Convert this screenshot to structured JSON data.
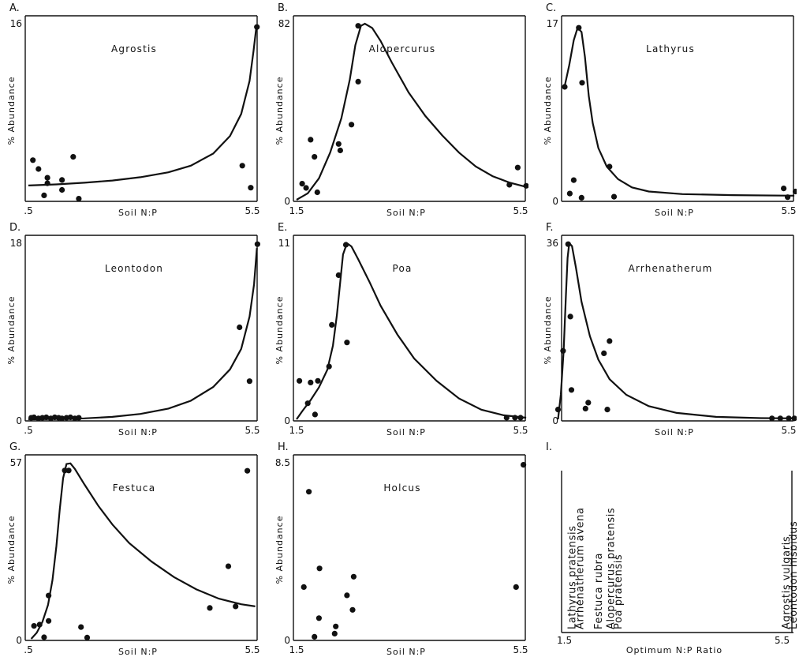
{
  "chart_data": [
    {
      "id": "A",
      "type": "scatter",
      "panel_label": "A.",
      "title": "Agrostis",
      "xlabel": "Soil  N:P",
      "ylabel": "% Abundance",
      "xlim": [
        1.5,
        5.5
      ],
      "ylim": [
        0,
        16
      ],
      "x_tick_labels": [
        ".5",
        "5.5"
      ],
      "y_tick_labels": [
        "16",
        ""
      ],
      "points": [
        [
          1.58,
          3.6
        ],
        [
          1.68,
          2.8
        ],
        [
          1.78,
          0.4
        ],
        [
          1.84,
          2.0
        ],
        [
          1.84,
          1.5
        ],
        [
          2.1,
          1.8
        ],
        [
          2.1,
          0.9
        ],
        [
          2.3,
          3.9
        ],
        [
          2.4,
          0.1
        ],
        [
          5.32,
          3.1
        ],
        [
          5.47,
          1.1
        ],
        [
          5.58,
          15.7
        ]
      ],
      "curve": [
        [
          1.5,
          1.3
        ],
        [
          2.0,
          1.4
        ],
        [
          2.5,
          1.55
        ],
        [
          3.0,
          1.75
        ],
        [
          3.5,
          2.05
        ],
        [
          4.0,
          2.5
        ],
        [
          4.4,
          3.1
        ],
        [
          4.8,
          4.2
        ],
        [
          5.1,
          5.8
        ],
        [
          5.3,
          7.8
        ],
        [
          5.45,
          10.8
        ],
        [
          5.52,
          13.5
        ],
        [
          5.57,
          15.7
        ]
      ]
    },
    {
      "id": "B",
      "type": "scatter",
      "panel_label": "B.",
      "title": "Alopercurus",
      "xlabel": "Soil  N:P",
      "ylabel": "% Abundance",
      "xlim": [
        1.5,
        5.5
      ],
      "ylim": [
        0,
        82
      ],
      "x_tick_labels": [
        "1.5",
        "5.5"
      ],
      "y_tick_labels": [
        "82",
        "0"
      ],
      "points": [
        [
          1.6,
          7.5
        ],
        [
          1.67,
          5.5
        ],
        [
          1.75,
          28
        ],
        [
          1.82,
          20
        ],
        [
          1.87,
          3.5
        ],
        [
          2.25,
          26
        ],
        [
          2.28,
          23
        ],
        [
          2.48,
          35
        ],
        [
          2.6,
          55
        ],
        [
          2.6,
          81
        ],
        [
          5.3,
          7
        ],
        [
          5.45,
          15
        ],
        [
          5.6,
          6.5
        ]
      ],
      "curve": [
        [
          1.5,
          0
        ],
        [
          1.7,
          3
        ],
        [
          1.9,
          10
        ],
        [
          2.1,
          22
        ],
        [
          2.3,
          38
        ],
        [
          2.45,
          56
        ],
        [
          2.55,
          72
        ],
        [
          2.65,
          81
        ],
        [
          2.72,
          82
        ],
        [
          2.85,
          80
        ],
        [
          3.0,
          74
        ],
        [
          3.2,
          64
        ],
        [
          3.5,
          50
        ],
        [
          3.8,
          39
        ],
        [
          4.1,
          30
        ],
        [
          4.4,
          22
        ],
        [
          4.7,
          15.5
        ],
        [
          5.0,
          11
        ],
        [
          5.3,
          8
        ],
        [
          5.6,
          6
        ]
      ]
    },
    {
      "id": "C",
      "type": "scatter",
      "panel_label": "C.",
      "title": "Lathyrus",
      "xlabel": "Soil  N:P",
      "ylabel": "% Abundance",
      "xlim": [
        1.5,
        5.5
      ],
      "ylim": [
        0,
        17
      ],
      "x_tick_labels": [
        "",
        "5.5"
      ],
      "y_tick_labels": [
        "17",
        "0"
      ],
      "points": [
        [
          1.5,
          10.9
        ],
        [
          1.59,
          0.6
        ],
        [
          1.66,
          1.9
        ],
        [
          1.75,
          16.6
        ],
        [
          1.81,
          11.3
        ],
        [
          1.8,
          0.2
        ],
        [
          2.3,
          3.2
        ],
        [
          2.38,
          0.3
        ],
        [
          5.41,
          1.1
        ],
        [
          5.48,
          0.25
        ],
        [
          5.62,
          0.8
        ]
      ],
      "curve": [
        [
          1.5,
          11
        ],
        [
          1.58,
          13
        ],
        [
          1.66,
          15.4
        ],
        [
          1.73,
          16.6
        ],
        [
          1.8,
          16.2
        ],
        [
          1.86,
          13.8
        ],
        [
          1.93,
          10
        ],
        [
          2.0,
          7.4
        ],
        [
          2.1,
          5
        ],
        [
          2.25,
          3.2
        ],
        [
          2.45,
          2
        ],
        [
          2.7,
          1.2
        ],
        [
          3.0,
          0.8
        ],
        [
          3.6,
          0.55
        ],
        [
          4.5,
          0.45
        ],
        [
          5.6,
          0.4
        ]
      ]
    },
    {
      "id": "D",
      "type": "scatter",
      "panel_label": "D.",
      "title": "Leontodon",
      "xlabel": "Soil  N:P",
      "ylabel": "% Abundance",
      "xlim": [
        1.5,
        5.5
      ],
      "ylim": [
        0,
        18
      ],
      "x_tick_labels": [
        ".5",
        "5.5"
      ],
      "y_tick_labels": [
        "18",
        "0"
      ],
      "points": [
        [
          1.55,
          0.15
        ],
        [
          1.6,
          0.2
        ],
        [
          1.68,
          0.1
        ],
        [
          1.75,
          0.15
        ],
        [
          1.82,
          0.2
        ],
        [
          1.9,
          0.1
        ],
        [
          1.97,
          0.2
        ],
        [
          2.04,
          0.15
        ],
        [
          2.1,
          0.1
        ],
        [
          2.18,
          0.15
        ],
        [
          2.25,
          0.2
        ],
        [
          2.33,
          0.1
        ],
        [
          2.4,
          0.15
        ],
        [
          5.27,
          9.4
        ],
        [
          5.45,
          3.9
        ],
        [
          5.59,
          17.9
        ]
      ],
      "curve": [
        [
          1.5,
          0
        ],
        [
          2.5,
          0.1
        ],
        [
          3.0,
          0.25
        ],
        [
          3.5,
          0.55
        ],
        [
          4.0,
          1.1
        ],
        [
          4.4,
          1.9
        ],
        [
          4.8,
          3.3
        ],
        [
          5.1,
          5.1
        ],
        [
          5.3,
          7.2
        ],
        [
          5.45,
          10.5
        ],
        [
          5.53,
          13.8
        ],
        [
          5.58,
          17.5
        ]
      ]
    },
    {
      "id": "E",
      "type": "scatter",
      "panel_label": "E.",
      "title": "Poa",
      "xlabel": "Soil  N:P",
      "ylabel": "% Abundance",
      "xlim": [
        1.5,
        5.5
      ],
      "ylim": [
        0,
        11
      ],
      "x_tick_labels": [
        "1.5",
        "5.5"
      ],
      "y_tick_labels": [
        "11",
        "0"
      ],
      "points": [
        [
          1.55,
          2.4
        ],
        [
          1.7,
          1.0
        ],
        [
          1.75,
          2.3
        ],
        [
          1.83,
          0.3
        ],
        [
          1.88,
          2.4
        ],
        [
          2.08,
          3.3
        ],
        [
          2.13,
          5.9
        ],
        [
          2.25,
          9.0
        ],
        [
          2.38,
          10.9
        ],
        [
          2.4,
          4.8
        ],
        [
          5.25,
          0.1
        ],
        [
          5.4,
          0.1
        ],
        [
          5.5,
          0.1
        ]
      ],
      "curve": [
        [
          1.5,
          0
        ],
        [
          1.6,
          0.5
        ],
        [
          1.75,
          1.2
        ],
        [
          1.9,
          2.0
        ],
        [
          2.05,
          3.1
        ],
        [
          2.15,
          4.6
        ],
        [
          2.22,
          6.5
        ],
        [
          2.28,
          8.6
        ],
        [
          2.33,
          10.3
        ],
        [
          2.4,
          11
        ],
        [
          2.48,
          10.8
        ],
        [
          2.6,
          10
        ],
        [
          2.8,
          8.6
        ],
        [
          3.0,
          7.1
        ],
        [
          3.3,
          5.3
        ],
        [
          3.6,
          3.8
        ],
        [
          4.0,
          2.4
        ],
        [
          4.4,
          1.3
        ],
        [
          4.8,
          0.6
        ],
        [
          5.2,
          0.25
        ],
        [
          5.6,
          0.1
        ]
      ]
    },
    {
      "id": "F",
      "type": "scatter",
      "panel_label": "F.",
      "title": "Arrhenatherum",
      "xlabel": "Soil  N:P",
      "ylabel": "% Abundance",
      "xlim": [
        1.5,
        5.5
      ],
      "ylim": [
        0,
        36
      ],
      "x_tick_labels": [
        "",
        "5.5"
      ],
      "y_tick_labels": [
        "36",
        "0"
      ],
      "points": [
        [
          1.38,
          2
        ],
        [
          1.47,
          14
        ],
        [
          1.56,
          35.8
        ],
        [
          1.6,
          21
        ],
        [
          1.62,
          6
        ],
        [
          1.87,
          2.2
        ],
        [
          1.92,
          3.4
        ],
        [
          2.2,
          13.5
        ],
        [
          2.26,
          2
        ],
        [
          2.3,
          16
        ],
        [
          5.2,
          0.2
        ],
        [
          5.35,
          0.2
        ],
        [
          5.5,
          0.2
        ],
        [
          5.6,
          0.2
        ]
      ],
      "curve": [
        [
          1.38,
          0
        ],
        [
          1.43,
          5
        ],
        [
          1.48,
          14
        ],
        [
          1.52,
          25
        ],
        [
          1.55,
          33
        ],
        [
          1.58,
          36
        ],
        [
          1.63,
          35.4
        ],
        [
          1.7,
          31
        ],
        [
          1.8,
          24
        ],
        [
          1.95,
          17
        ],
        [
          2.1,
          12.2
        ],
        [
          2.3,
          8.2
        ],
        [
          2.6,
          5
        ],
        [
          3.0,
          2.7
        ],
        [
          3.5,
          1.3
        ],
        [
          4.2,
          0.5
        ],
        [
          5.0,
          0.25
        ],
        [
          5.6,
          0.2
        ]
      ]
    },
    {
      "id": "G",
      "type": "scatter",
      "panel_label": "G.",
      "title": "Festuca",
      "xlabel": "Soil  N:P",
      "ylabel": "% Abundance",
      "xlim": [
        1.5,
        5.5
      ],
      "ylim": [
        0,
        57
      ],
      "x_tick_labels": [
        ".5",
        "5.5"
      ],
      "y_tick_labels": [
        "57",
        "0"
      ],
      "points": [
        [
          1.6,
          4.2
        ],
        [
          1.7,
          4.6
        ],
        [
          1.78,
          0.5
        ],
        [
          1.86,
          14
        ],
        [
          1.86,
          5.8
        ],
        [
          2.15,
          54.5
        ],
        [
          2.22,
          54.5
        ],
        [
          2.44,
          3.8
        ],
        [
          2.55,
          0.4
        ],
        [
          4.74,
          10
        ],
        [
          5.07,
          23.5
        ],
        [
          5.2,
          10.5
        ],
        [
          5.41,
          54.4
        ]
      ],
      "curve": [
        [
          1.55,
          0
        ],
        [
          1.65,
          2
        ],
        [
          1.75,
          5.5
        ],
        [
          1.85,
          11
        ],
        [
          1.93,
          19
        ],
        [
          2.0,
          30
        ],
        [
          2.06,
          42
        ],
        [
          2.12,
          52
        ],
        [
          2.18,
          56.6
        ],
        [
          2.25,
          56.8
        ],
        [
          2.33,
          55
        ],
        [
          2.5,
          50
        ],
        [
          2.75,
          43
        ],
        [
          3.0,
          37
        ],
        [
          3.3,
          31
        ],
        [
          3.7,
          25
        ],
        [
          4.1,
          20
        ],
        [
          4.5,
          16
        ],
        [
          4.9,
          13
        ],
        [
          5.3,
          11.2
        ],
        [
          5.55,
          10.5
        ]
      ]
    },
    {
      "id": "H",
      "type": "scatter",
      "panel_label": "H.",
      "title": "Holcus",
      "xlabel": "Soil  N:P",
      "ylabel": "% Abundance",
      "xlim": [
        1.5,
        5.5
      ],
      "ylim": [
        0,
        8.5
      ],
      "x_tick_labels": [
        "1.5",
        "5.5"
      ],
      "y_tick_labels": [
        "8.5",
        "0"
      ],
      "points": [
        [
          1.63,
          2.5
        ],
        [
          1.72,
          7.1
        ],
        [
          1.82,
          0.1
        ],
        [
          1.9,
          1.0
        ],
        [
          1.91,
          3.4
        ],
        [
          2.18,
          0.25
        ],
        [
          2.2,
          0.6
        ],
        [
          2.4,
          2.1
        ],
        [
          2.5,
          1.4
        ],
        [
          2.52,
          3.0
        ],
        [
          5.42,
          2.5
        ],
        [
          5.55,
          8.4
        ]
      ]
    },
    {
      "id": "I",
      "type": "table",
      "panel_label": "I.",
      "xlabel": "Optimum  N:P  Ratio",
      "x_tick_labels": [
        "1.5",
        "5.5"
      ],
      "species": [
        {
          "label": "Lathyrus   pratensis",
          "optimum": 1.58
        },
        {
          "label": "Arrhenatherum   avena",
          "optimum": 1.72
        },
        {
          "label": "Festuca  rubra",
          "optimum": 2.05
        },
        {
          "label": "Alopercurus   pratensis",
          "optimum": 2.27
        },
        {
          "label": "Poa   pratensis",
          "optimum": 2.4
        },
        {
          "label": "Agrostis   vulgaris",
          "optimum": 5.4
        },
        {
          "label": "Leontodon   hispidus",
          "optimum": 5.53
        }
      ]
    }
  ]
}
